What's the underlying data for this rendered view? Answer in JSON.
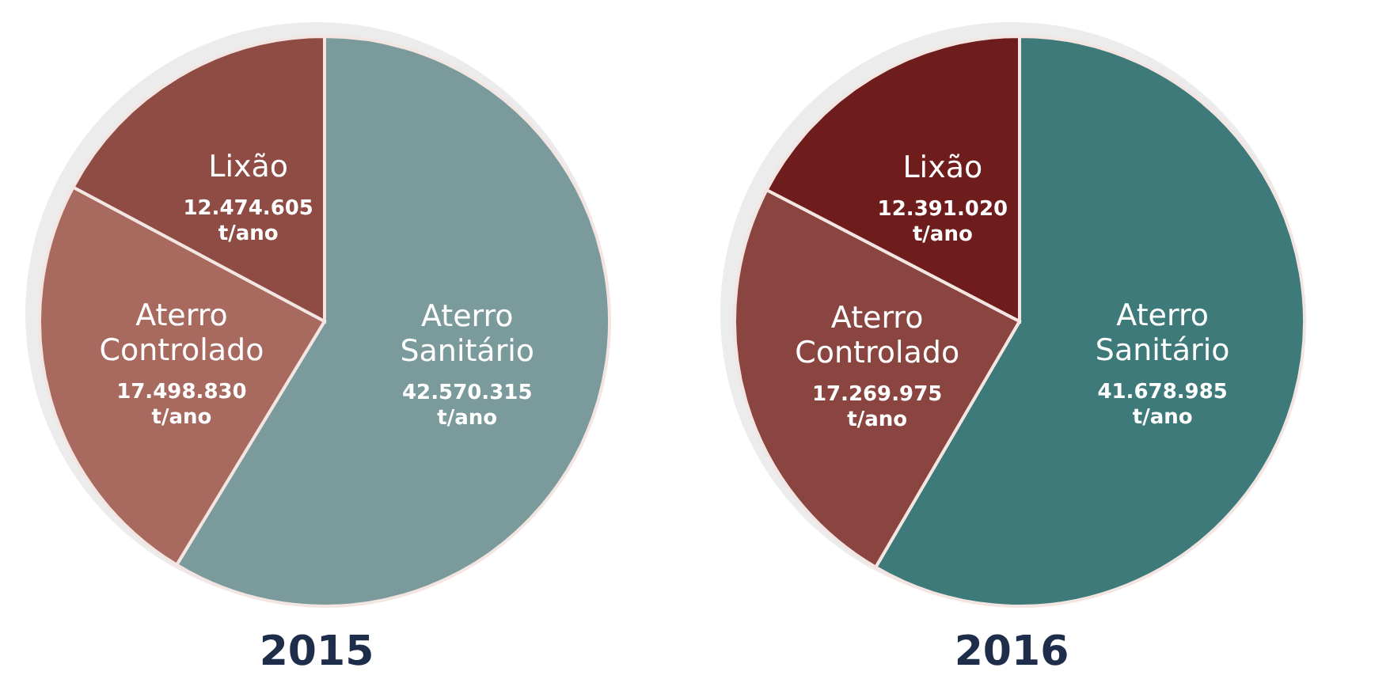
{
  "chart_data": [
    {
      "type": "pie",
      "title": "2015",
      "categories": [
        "Aterro Sanitário",
        "Aterro Controlado",
        "Lixão"
      ],
      "values": [
        42570315,
        17498830,
        12474605
      ],
      "colors": [
        "#7a9a9b",
        "#a8695e",
        "#8e4c44"
      ],
      "value_labels": [
        "42.570.315 t/ano",
        "17.498.830 t/ano",
        "12.474.605 t/ano"
      ],
      "legend": false
    },
    {
      "type": "pie",
      "title": "2016",
      "categories": [
        "Aterro Sanitário",
        "Aterro Controlado",
        "Lixão"
      ],
      "values": [
        41678985,
        17269975,
        12391020
      ],
      "colors": [
        "#3e7a7a",
        "#8a4540",
        "#6e1c1c"
      ],
      "value_labels": [
        "41.678.985 t/ano",
        "17.269.975 t/ano",
        "12.391.020 t/ano"
      ],
      "legend": false
    }
  ]
}
